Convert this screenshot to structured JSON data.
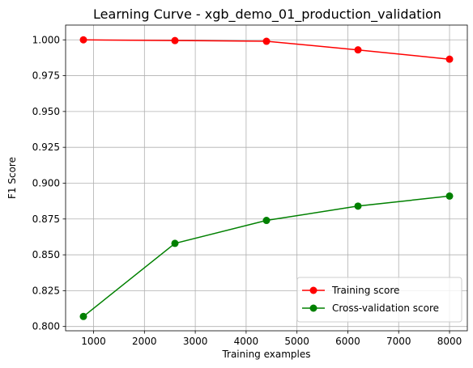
{
  "chart_data": {
    "type": "line",
    "title": "Learning Curve - xgb_demo_01_production_validation",
    "xlabel": "Training examples",
    "ylabel": "F1 Score",
    "xlim": [
      450,
      8350
    ],
    "ylim": [
      0.797,
      1.0103
    ],
    "xticks": [
      1000,
      2000,
      3000,
      4000,
      5000,
      6000,
      7000,
      8000
    ],
    "xtick_labels": [
      "1000",
      "2000",
      "3000",
      "4000",
      "5000",
      "6000",
      "7000",
      "8000"
    ],
    "yticks": [
      0.8,
      0.825,
      0.85,
      0.875,
      0.9,
      0.925,
      0.95,
      0.975,
      1.0
    ],
    "ytick_labels": [
      "0.800",
      "0.825",
      "0.850",
      "0.875",
      "0.900",
      "0.925",
      "0.950",
      "0.975",
      "1.000"
    ],
    "grid": true,
    "legend_position": "lower right",
    "x": [
      800,
      2600,
      4400,
      6200,
      8000
    ],
    "series": [
      {
        "name": "Training score",
        "color": "#ff0000",
        "marker": "circle",
        "values": [
          1.0,
          0.9995,
          0.999,
          0.993,
          0.9865
        ]
      },
      {
        "name": "Cross-validation score",
        "color": "#008000",
        "marker": "circle",
        "values": [
          0.807,
          0.858,
          0.874,
          0.884,
          0.891
        ]
      }
    ]
  }
}
